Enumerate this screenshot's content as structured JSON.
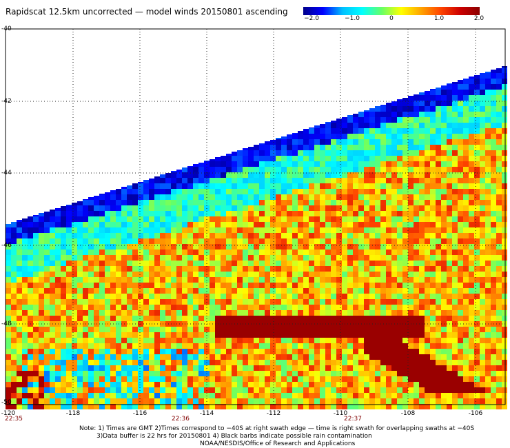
{
  "title": "Rapidscat 12.5km uncorrected — model winds 20150801 ascending",
  "colorbar": {
    "ticks": [
      "−2.0",
      "−1.0",
      "0",
      "1.0",
      "2.0"
    ],
    "stops": [
      "#00008b",
      "#0000ff",
      "#00bfff",
      "#00ffff",
      "#66ff66",
      "#ffff00",
      "#ffa500",
      "#ff4500",
      "#cc0000",
      "#8b0000"
    ]
  },
  "map": {
    "lat_labels": [
      "-40",
      "-42",
      "-44",
      "-46",
      "-48",
      "-50"
    ],
    "lon_labels": [
      "-120",
      "-118",
      "-116",
      "-114",
      "-112",
      "-110",
      "-108",
      "-106"
    ],
    "time_labels": [
      "22:35",
      "22:36",
      "22:37"
    ],
    "lat_range": [
      -50,
      -40
    ],
    "lon_range": [
      -120,
      -104.8
    ],
    "grid": true
  },
  "notes": [
    "Note: 1) Times are GMT 2)Times correspond to −40S at right swath edge — time is right swath for overlapping swaths at −40S",
    "3)Data buffer is 22 hrs for 20150801 4) Black barbs indicate possible rain contamination",
    "NOAA/NESDIS/Office of Research and Applications"
  ]
}
